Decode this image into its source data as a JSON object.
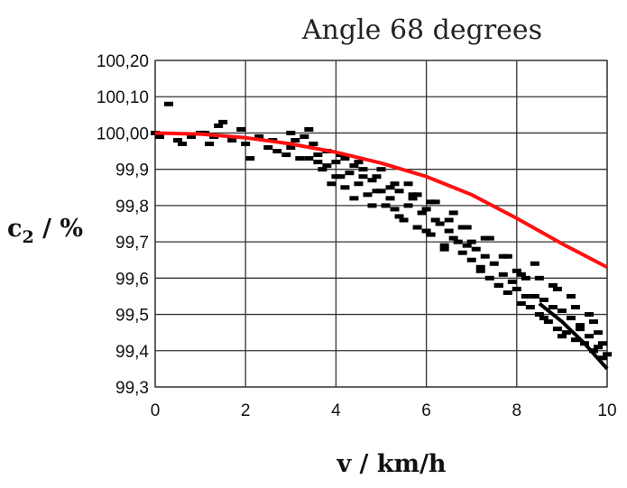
{
  "chart_data": {
    "type": "scatter",
    "title": "Angle 68 degrees",
    "xlabel": "v / km/h",
    "ylabel": "c2 / %",
    "ylabel_main": "c",
    "ylabel_sub": "2",
    "ylabel_rest": " / %",
    "xlim": [
      0,
      10
    ],
    "ylim": [
      99.3,
      100.2
    ],
    "grid": true,
    "legend": "none",
    "x_ticks": [
      0,
      2,
      4,
      6,
      8,
      10
    ],
    "x_tick_labels": [
      "0",
      "2",
      "4",
      "6",
      "8",
      "10"
    ],
    "y_ticks": [
      100.2,
      100.1,
      100.0,
      99.9,
      99.8,
      99.7,
      99.6,
      99.5,
      99.4,
      99.3
    ],
    "y_tick_labels": [
      "100,20",
      "100,10",
      "100,00",
      "99,9",
      "99,8",
      "99,7",
      "99,6",
      "99,5",
      "99,4",
      "99,3"
    ],
    "series": [
      {
        "kind": "points",
        "color": "#000000",
        "x": [
          0.0,
          0.3,
          0.1,
          0.5,
          0.8,
          1.0,
          1.2,
          1.4,
          1.5,
          1.7,
          1.9,
          2.1,
          2.3,
          2.5,
          2.7,
          2.9,
          3.0,
          3.1,
          3.2,
          3.3,
          3.4,
          3.5,
          3.6,
          3.7,
          3.8,
          3.9,
          4.0,
          4.1,
          4.2,
          4.3,
          4.4,
          4.5,
          4.6,
          4.7,
          4.8,
          4.9,
          5.0,
          5.1,
          5.2,
          5.3,
          5.4,
          5.5,
          5.6,
          5.7,
          5.8,
          5.9,
          6.0,
          6.1,
          6.2,
          6.3,
          6.4,
          6.5,
          6.6,
          6.7,
          6.8,
          6.9,
          7.0,
          7.1,
          7.2,
          7.3,
          7.4,
          7.5,
          7.6,
          7.7,
          7.8,
          7.9,
          8.0,
          8.1,
          8.2,
          8.3,
          8.4,
          8.5,
          8.6,
          8.7,
          8.8,
          8.9,
          9.0,
          9.1,
          9.2,
          9.3,
          9.4,
          9.5,
          9.6,
          9.7,
          9.8,
          9.9,
          10.0,
          3.6,
          3.8,
          4.0,
          4.2,
          4.4,
          4.6,
          4.8,
          5.0,
          5.2,
          5.4,
          5.6,
          5.8,
          6.0,
          6.2,
          6.4,
          6.6,
          6.8,
          7.0,
          7.2,
          7.4,
          7.6,
          7.8,
          8.0,
          8.2,
          8.4,
          8.6,
          8.8,
          9.0,
          9.2,
          9.4,
          9.6,
          9.8,
          1.3,
          2.0,
          2.6,
          3.0,
          3.4,
          0.6,
          1.1,
          4.1,
          4.5,
          4.9,
          5.3,
          5.7,
          6.1,
          6.5,
          6.9,
          7.3,
          7.7,
          8.1,
          8.5,
          8.9,
          9.3,
          9.7,
          9.9
        ],
        "y": [
          100.0,
          100.08,
          99.99,
          99.98,
          99.99,
          100.0,
          99.97,
          100.02,
          100.03,
          99.98,
          100.01,
          99.93,
          99.99,
          99.96,
          99.95,
          99.94,
          100.0,
          99.98,
          99.93,
          99.99,
          99.93,
          99.97,
          99.94,
          99.9,
          99.91,
          99.86,
          99.92,
          99.88,
          99.85,
          99.89,
          99.82,
          99.86,
          99.9,
          99.83,
          99.87,
          99.84,
          99.84,
          99.8,
          99.85,
          99.79,
          99.84,
          99.76,
          99.8,
          99.82,
          99.74,
          99.78,
          99.79,
          99.72,
          99.76,
          99.75,
          99.69,
          99.73,
          99.71,
          99.7,
          99.67,
          99.69,
          99.65,
          99.68,
          99.62,
          99.66,
          99.6,
          99.64,
          99.58,
          99.61,
          99.56,
          99.59,
          99.57,
          99.53,
          99.6,
          99.52,
          99.55,
          99.5,
          99.54,
          99.48,
          99.52,
          99.46,
          99.51,
          99.45,
          99.49,
          99.43,
          99.47,
          99.42,
          99.44,
          99.4,
          99.45,
          99.38,
          99.39,
          99.92,
          99.95,
          99.88,
          99.93,
          99.91,
          99.88,
          99.8,
          99.9,
          99.82,
          99.77,
          99.86,
          99.83,
          99.73,
          99.81,
          99.68,
          99.78,
          99.74,
          99.7,
          99.63,
          99.71,
          99.58,
          99.66,
          99.62,
          99.55,
          99.64,
          99.49,
          99.58,
          99.44,
          99.55,
          99.46,
          99.5,
          99.41,
          99.99,
          99.97,
          99.98,
          99.96,
          100.01,
          99.97,
          100.0,
          99.94,
          99.92,
          99.88,
          99.86,
          99.83,
          99.81,
          99.76,
          99.74,
          99.71,
          99.66,
          99.61,
          99.6,
          99.57,
          99.52,
          99.48,
          99.42
        ]
      },
      {
        "kind": "line",
        "color": "#ff1010",
        "x": [
          0,
          1,
          2,
          3,
          4,
          5,
          6,
          7,
          8,
          9,
          10
        ],
        "y": [
          100.0,
          99.997,
          99.987,
          99.97,
          99.947,
          99.917,
          99.88,
          99.83,
          99.765,
          99.695,
          99.63
        ]
      },
      {
        "kind": "line",
        "color": "#000000",
        "x": [
          8.5,
          9.0,
          9.5,
          10.0
        ],
        "y": [
          99.53,
          99.48,
          99.42,
          99.35
        ]
      }
    ]
  }
}
